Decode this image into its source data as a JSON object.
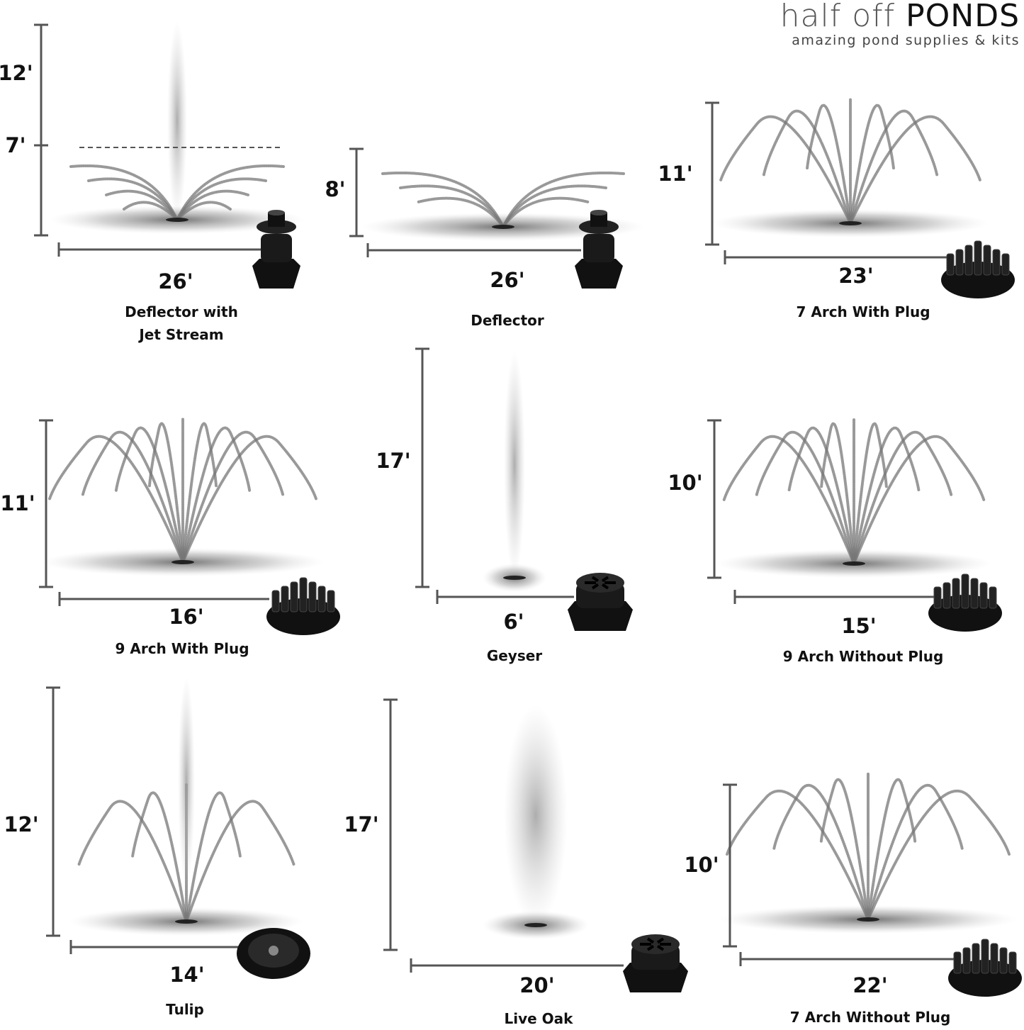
{
  "brand": {
    "logo_light": "half off ",
    "logo_dark": "PONDS",
    "tagline": "amazing pond supplies & kits"
  },
  "panels": [
    {
      "name": "Deflector with Jet Stream",
      "height": "12'",
      "mid_height": "7'",
      "width": "26'",
      "nozzle": "deflector-nozzle"
    },
    {
      "name": "Deflector",
      "height": "8'",
      "width": "26'",
      "nozzle": "deflector-nozzle"
    },
    {
      "name": "7 Arch With Plug",
      "height": "11'",
      "width": "23'",
      "nozzle": "arch-nozzle"
    },
    {
      "name": "9 Arch With Plug",
      "height": "11'",
      "width": "16'",
      "nozzle": "arch-nozzle"
    },
    {
      "name": "Geyser",
      "height": "17'",
      "width": "6'",
      "nozzle": "geyser-nozzle"
    },
    {
      "name": "9 Arch Without Plug",
      "height": "10'",
      "width": "15'",
      "nozzle": "arch-nozzle"
    },
    {
      "name": "Tulip",
      "height": "12'",
      "width": "14'",
      "nozzle": "tulip-nozzle"
    },
    {
      "name": "Live Oak",
      "height": "17'",
      "width": "20'",
      "nozzle": "geyser-nozzle"
    },
    {
      "name": "7 Arch Without Plug",
      "height": "10'",
      "width": "22'",
      "nozzle": "arch-nozzle"
    }
  ]
}
